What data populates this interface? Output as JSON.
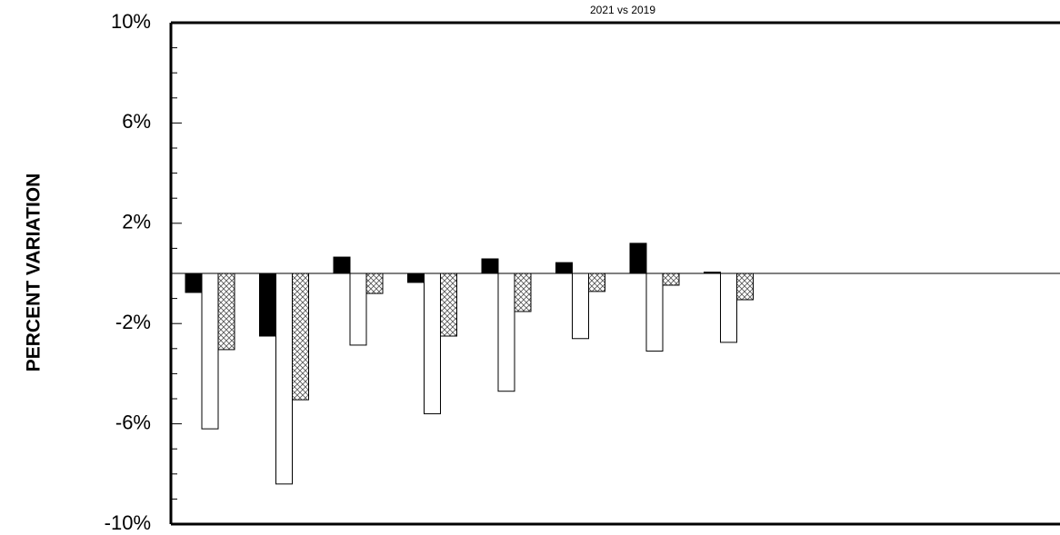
{
  "chart_data": {
    "type": "bar",
    "title": "2021 vs 2019",
    "y_label": "PERCENT VARIATION",
    "categories": [
      null,
      null,
      null,
      null,
      null,
      null,
      null,
      null,
      null,
      null,
      null,
      null
    ],
    "series": [
      {
        "color": "#000000",
        "values": [
          -0.76,
          -2.5,
          0.65,
          -0.36,
          0.58,
          0.43,
          1.2,
          0.05,
          null,
          null,
          null,
          null
        ]
      },
      {
        "color": "#ffffff",
        "values": [
          -6.2,
          -8.4,
          -2.86,
          -5.6,
          -4.7,
          -2.6,
          -3.1,
          -2.75,
          null,
          null,
          null,
          null
        ]
      },
      {
        "color": "#ffffff",
        "pattern": "crosshatch",
        "values": [
          -3.04,
          -5.04,
          -0.8,
          -2.5,
          -1.52,
          -0.72,
          -0.47,
          -1.05,
          null,
          null,
          null,
          null
        ]
      }
    ],
    "ylim": [
      -10,
      10
    ],
    "yticks": [
      {
        "value": -10,
        "label": "-10%"
      },
      {
        "value": -6,
        "label": "-6%"
      },
      {
        "value": -2,
        "label": "-2%"
      },
      {
        "value": 2,
        "label": "2%"
      },
      {
        "value": 6,
        "label": "6%"
      },
      {
        "value": 10,
        "label": "10%"
      }
    ],
    "yminorticks": [
      -9,
      -8,
      -7,
      -5,
      -4,
      -3,
      -1,
      0,
      1,
      3,
      4,
      5,
      7,
      8,
      9
    ],
    "grid": false
  }
}
